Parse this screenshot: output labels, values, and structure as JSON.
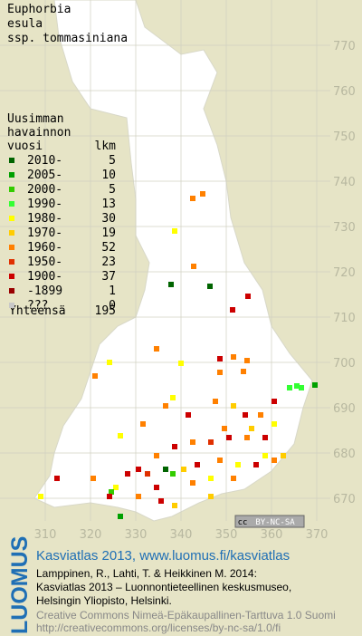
{
  "title": [
    "Euphorbia",
    "esula",
    "ssp. tommasiniana"
  ],
  "legend": {
    "header": [
      "Uusimman",
      "havainnon"
    ],
    "col_label": "vuosi",
    "col_count": "lkm",
    "rows": [
      {
        "label": "2010-",
        "count": 5,
        "color": "#006400"
      },
      {
        "label": "2005-",
        "count": 10,
        "color": "#00a000"
      },
      {
        "label": "2000-",
        "count": 5,
        "color": "#33cc00"
      },
      {
        "label": "1990-",
        "count": 13,
        "color": "#33ff33"
      },
      {
        "label": "1980-",
        "count": 30,
        "color": "#ffff00"
      },
      {
        "label": "1970-",
        "count": 19,
        "color": "#ffcc00"
      },
      {
        "label": "1960-",
        "count": 52,
        "color": "#ff8000"
      },
      {
        "label": "1950-",
        "count": 23,
        "color": "#e03000"
      },
      {
        "label": "1900-",
        "count": 37,
        "color": "#cc0000"
      },
      {
        "label": "-1899",
        "count": 1,
        "color": "#990000"
      },
      {
        "label": "???",
        "count": 0,
        "color": "#c8c8c8"
      }
    ],
    "total_label": "Yhteensä",
    "total": 195
  },
  "map": {
    "xticks": [
      310,
      320,
      330,
      340,
      350,
      360,
      370
    ],
    "yticks": [
      770,
      760,
      750,
      740,
      730,
      720,
      710,
      700,
      690,
      680,
      670
    ],
    "license_badge": [
      "cc",
      "BY-NC-SA"
    ]
  },
  "footer": {
    "logo": "LUOMUS",
    "headline": "Kasviatlas 2013, www.luomus.fi/kasviatlas",
    "citation": [
      "Lamppinen, R., Lahti, T. & Heikkinen M. 2014:",
      "Kasviatlas 2013 – Luonnontieteellinen keskusmuseo,",
      "Helsingin Yliopisto, Helsinki."
    ],
    "license": [
      "Creative Commons Nimeä-Epäkaupallinen-Tarttuva 1.0 Suomi",
      "http://creativecommons.org/licenses/by-nc-sa/1.0/fi"
    ]
  }
}
